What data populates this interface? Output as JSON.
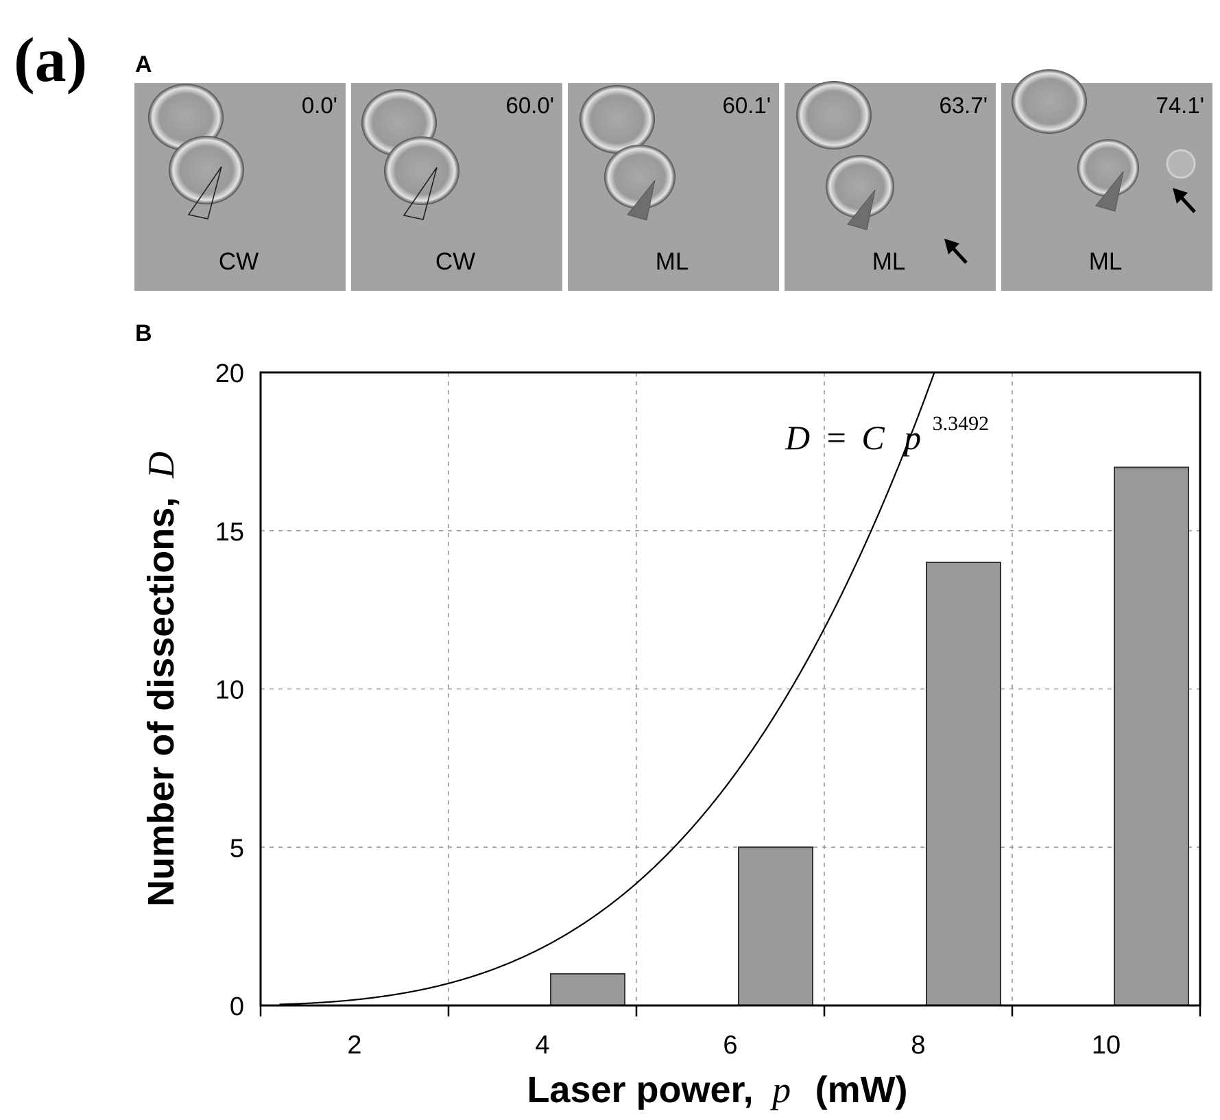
{
  "figure": {
    "label": "(a)"
  },
  "panel_a": {
    "label": "A",
    "frames": [
      {
        "time": "0.0'",
        "region": "CW",
        "arrow": false
      },
      {
        "time": "60.0'",
        "region": "CW",
        "arrow": false
      },
      {
        "time": "60.1'",
        "region": "ML",
        "arrow": false
      },
      {
        "time": "63.7'",
        "region": "ML",
        "arrow": true
      },
      {
        "time": "74.1'",
        "region": "ML",
        "arrow": true
      }
    ]
  },
  "panel_b": {
    "label": "B"
  },
  "chart_data": {
    "type": "bar",
    "categories": [
      "2",
      "4",
      "6",
      "8",
      "10"
    ],
    "x": [
      2,
      4,
      6,
      8,
      10
    ],
    "values": [
      0,
      1,
      5,
      14,
      17
    ],
    "fit": {
      "label_parts": {
        "lhs": "D",
        "eq": "=",
        "c": "C",
        "p": "p",
        "exponent": "3.3492"
      },
      "exponent": 3.3492,
      "coefficient": 0.0176
    },
    "xlabel_parts": {
      "text": "Laser power,",
      "var": "p",
      "unit": "(mW)"
    },
    "ylabel_parts": {
      "text": "Number of dissections,",
      "var": "D"
    },
    "ylim": [
      0,
      20
    ],
    "yticks": [
      0,
      5,
      10,
      15,
      20
    ],
    "grid": true,
    "colors": {
      "bar": "#999999",
      "bar_stroke": "#333333",
      "curve": "#000000",
      "grid": "#999999"
    }
  }
}
